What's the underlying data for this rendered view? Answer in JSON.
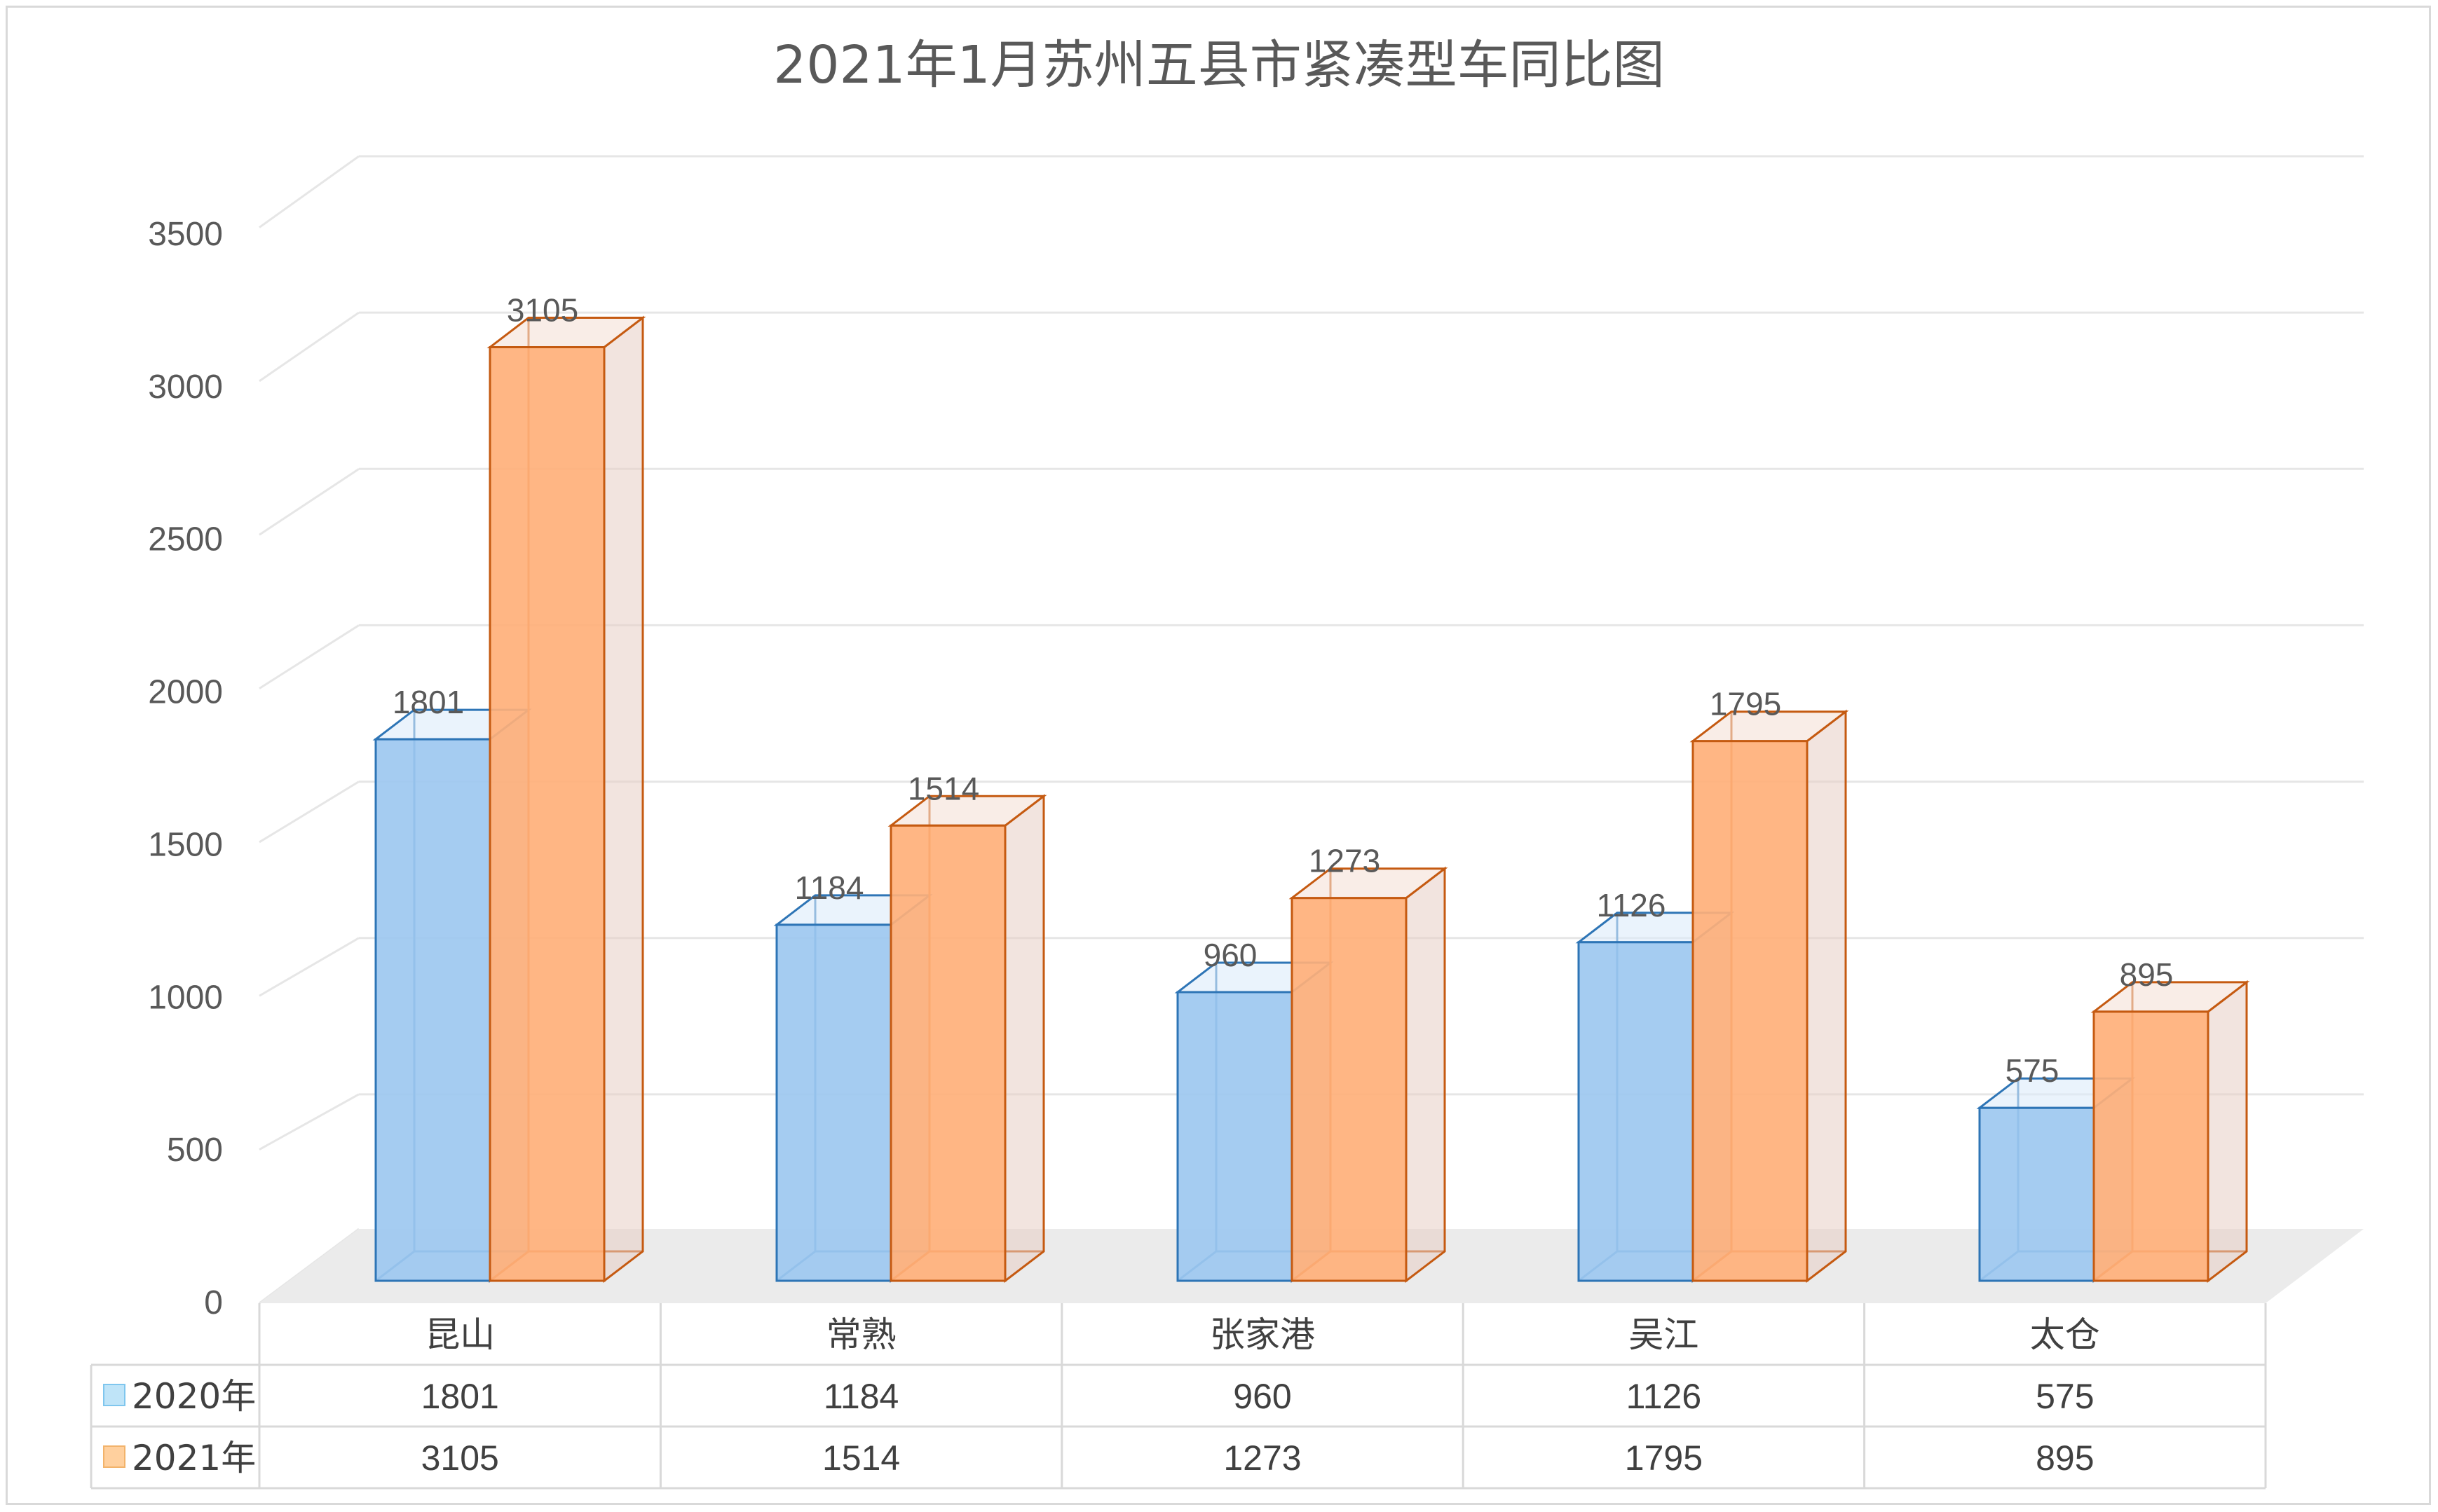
{
  "chart_data": {
    "type": "bar",
    "title": "2021年1月苏州五县市紧凑型车同比图",
    "categories": [
      "昆山",
      "常熟",
      "张家港",
      "吴江",
      "太仓"
    ],
    "series": [
      {
        "name": "2020年",
        "values": [
          1801,
          1184,
          960,
          1126,
          575
        ],
        "color": "#9dc8f0",
        "stroke": "#2e75b6"
      },
      {
        "name": "2021年",
        "values": [
          3105,
          1514,
          1273,
          1795,
          895
        ],
        "color": "#ffb07a",
        "stroke": "#c55a11"
      }
    ],
    "ylim": [
      0,
      3500
    ],
    "y_ticks": [
      "0",
      "500",
      "1000",
      "1500",
      "2000",
      "2500",
      "3000",
      "3500"
    ],
    "grid": true,
    "legend": "data table",
    "data_table": true,
    "style": "3d clustered column"
  }
}
